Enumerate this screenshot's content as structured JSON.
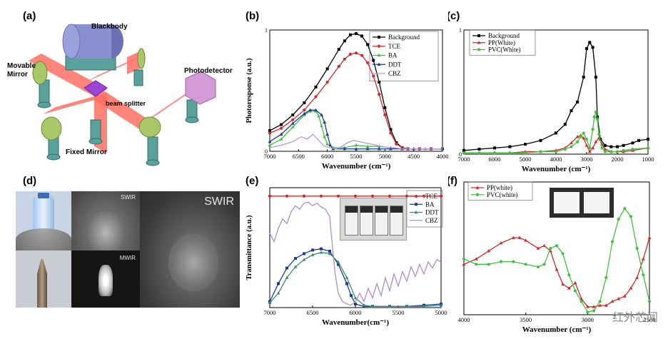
{
  "figure": {
    "panel_labels": {
      "a": "(a)",
      "b": "(b)",
      "c": "(c)",
      "d": "(d)",
      "e": "(e)",
      "f": "(f)"
    },
    "watermark": "红外芯闻"
  },
  "setup": {
    "blackbody": "Blackbody",
    "movable_mirror": "Movable Mirror",
    "beam_splitter": "beam splitter",
    "photodetector": "Photodetector",
    "fixed_mirror": "Fixed Mirror",
    "colors": {
      "beam": "#ff6f61",
      "mirror": "#a9c766",
      "post": "#5aa19b",
      "splitter": "#9b46d8",
      "detector": "#d39bd8",
      "blackbody": "#8a8fcf"
    }
  },
  "imaging": {
    "swir_small": "SWIR",
    "mwir_small": "MWIR",
    "swir_large": "SWIR"
  },
  "chart_data": [
    {
      "id": "b",
      "type": "line",
      "xlabel": "Wavenumber (cm⁻¹)",
      "ylabel": "Photoresponse (a.u.)",
      "xlim": [
        7000,
        4000
      ],
      "ylim": [
        0,
        1
      ],
      "xticks": [
        7000,
        6500,
        6000,
        5500,
        5000,
        4500,
        4000
      ],
      "yticks": [
        {
          "v": 0,
          "t": "0"
        },
        {
          "v": 1,
          "t": "1"
        }
      ],
      "series": [
        {
          "name": "Background",
          "color": "#000000",
          "marker": "square",
          "x": [
            7000,
            6800,
            6600,
            6400,
            6200,
            6000,
            5800,
            5700,
            5600,
            5500,
            5400,
            5300,
            5200,
            5100,
            5000,
            4900,
            4800,
            4700,
            4600,
            4400,
            4200,
            4000
          ],
          "y": [
            0.17,
            0.22,
            0.3,
            0.4,
            0.53,
            0.68,
            0.84,
            0.91,
            0.96,
            0.97,
            0.95,
            0.88,
            0.75,
            0.57,
            0.36,
            0.18,
            0.07,
            0.03,
            0.02,
            0.02,
            0.02,
            0.02
          ]
        },
        {
          "name": "TCE",
          "color": "#d62728",
          "marker": "circle",
          "x": [
            7000,
            6800,
            6600,
            6400,
            6200,
            6000,
            5800,
            5700,
            5600,
            5500,
            5400,
            5300,
            5200,
            5100,
            5000,
            4900,
            4800,
            4700,
            4600,
            4400,
            4200,
            4000
          ],
          "y": [
            0.15,
            0.19,
            0.26,
            0.34,
            0.45,
            0.57,
            0.7,
            0.76,
            0.8,
            0.81,
            0.79,
            0.73,
            0.62,
            0.47,
            0.3,
            0.15,
            0.06,
            0.03,
            0.02,
            0.02,
            0.02,
            0.02
          ]
        },
        {
          "name": "BA",
          "color": "#3fc23f",
          "marker": "triangle-up",
          "x": [
            7000,
            6800,
            6600,
            6400,
            6300,
            6200,
            6150,
            6100,
            6050,
            6000,
            5900,
            5700,
            5500,
            5300,
            5100,
            4900,
            4700,
            4500,
            4300,
            4000
          ],
          "y": [
            0.05,
            0.1,
            0.2,
            0.3,
            0.33,
            0.33,
            0.29,
            0.21,
            0.12,
            0.06,
            0.03,
            0.03,
            0.05,
            0.04,
            0.04,
            0.03,
            0.02,
            0.02,
            0.02,
            0.02
          ]
        },
        {
          "name": "DDT",
          "color": "#1f3a93",
          "marker": "triangle-up",
          "x": [
            7000,
            6800,
            6600,
            6400,
            6300,
            6200,
            6100,
            6050,
            6000,
            5950,
            5900,
            5700,
            5500,
            5300,
            5100,
            4900,
            4700,
            4500,
            4000
          ],
          "y": [
            0.08,
            0.14,
            0.23,
            0.31,
            0.34,
            0.34,
            0.3,
            0.24,
            0.14,
            0.05,
            0.02,
            0.02,
            0.02,
            0.02,
            0.02,
            0.02,
            0.02,
            0.02,
            0.02
          ]
        },
        {
          "name": "CBZ",
          "color": "#b79bd6",
          "marker": "none",
          "x": [
            7000,
            6800,
            6600,
            6450,
            6350,
            6250,
            6150,
            6050,
            5950,
            5850,
            5750,
            5650,
            5550,
            5450,
            5350,
            5250,
            5150,
            5050,
            4950,
            4850,
            4700,
            4500,
            4300,
            4000
          ],
          "y": [
            0.03,
            0.05,
            0.08,
            0.12,
            0.1,
            0.14,
            0.09,
            0.04,
            0.03,
            0.02,
            0.04,
            0.07,
            0.09,
            0.08,
            0.07,
            0.06,
            0.05,
            0.04,
            0.03,
            0.03,
            0.02,
            0.02,
            0.02,
            0.02
          ]
        }
      ]
    },
    {
      "id": "c",
      "type": "line",
      "xlabel": "Wavenumber (cm⁻¹)",
      "ylabel": "Photoresponse (a.u.)",
      "xlim": [
        7000,
        1000
      ],
      "ylim": [
        0,
        1
      ],
      "xticks": [
        7000,
        6000,
        5000,
        4000,
        3000,
        2000,
        1000
      ],
      "yticks": [
        {
          "v": 0,
          "t": "0"
        },
        {
          "v": 1,
          "t": "1"
        }
      ],
      "series": [
        {
          "name": "Background",
          "color": "#000000",
          "marker": "square",
          "x": [
            7000,
            6500,
            6000,
            5500,
            5000,
            4500,
            4000,
            3700,
            3500,
            3300,
            3100,
            3000,
            2900,
            2800,
            2700,
            2650,
            2550,
            2400,
            2200,
            2000,
            1800,
            1500,
            1300,
            1000
          ],
          "y": [
            0.03,
            0.04,
            0.05,
            0.06,
            0.08,
            0.11,
            0.17,
            0.24,
            0.35,
            0.42,
            0.62,
            0.85,
            0.9,
            0.86,
            0.62,
            0.3,
            0.12,
            0.07,
            0.06,
            0.06,
            0.07,
            0.09,
            0.11,
            0.12
          ]
        },
        {
          "name": "PP(White)",
          "color": "#d62728",
          "marker": "triangle-up",
          "x": [
            7000,
            6500,
            6000,
            5500,
            5000,
            4500,
            4000,
            3700,
            3500,
            3300,
            3200,
            3100,
            3000,
            2900,
            2800,
            2700,
            2600,
            2500,
            2400,
            2200,
            2000,
            1800,
            1500,
            1000
          ],
          "y": [
            0.01,
            0.01,
            0.01,
            0.01,
            0.02,
            0.02,
            0.03,
            0.05,
            0.09,
            0.14,
            0.15,
            0.13,
            0.07,
            0.02,
            0.05,
            0.1,
            0.13,
            0.08,
            0.04,
            0.02,
            0.02,
            0.02,
            0.03,
            0.05
          ]
        },
        {
          "name": "PVC(White)",
          "color": "#3fc23f",
          "marker": "circle",
          "x": [
            7000,
            6500,
            6000,
            5500,
            5000,
            4500,
            4000,
            3700,
            3500,
            3300,
            3200,
            3100,
            3000,
            2900,
            2800,
            2750,
            2700,
            2650,
            2600,
            2500,
            2400,
            2200,
            2000,
            1800,
            1500,
            1000
          ],
          "y": [
            0.01,
            0.01,
            0.01,
            0.01,
            0.01,
            0.02,
            0.02,
            0.04,
            0.06,
            0.1,
            0.14,
            0.17,
            0.12,
            0.05,
            0.2,
            0.3,
            0.34,
            0.28,
            0.16,
            0.05,
            0.02,
            0.02,
            0.02,
            0.03,
            0.04,
            0.05
          ]
        }
      ]
    },
    {
      "id": "e",
      "type": "line",
      "xlabel": "Wavenumber(cm⁻¹)",
      "ylabel": "Transmittance (a.u.)",
      "xlim": [
        7000,
        5000
      ],
      "ylim": [
        0,
        1
      ],
      "xticks": [
        7000,
        6500,
        6000,
        5500,
        5000
      ],
      "yticks": [],
      "series": [
        {
          "name": "TCE",
          "color": "#d62728",
          "marker": "circle",
          "x": [
            7000,
            6800,
            6600,
            6400,
            6200,
            6000,
            5800,
            5600,
            5400,
            5200,
            5000
          ],
          "y": [
            0.93,
            0.93,
            0.93,
            0.93,
            0.93,
            0.93,
            0.93,
            0.93,
            0.93,
            0.93,
            0.93
          ]
        },
        {
          "name": "BA",
          "color": "#1f3a93",
          "marker": "square",
          "x": [
            7000,
            6900,
            6800,
            6700,
            6600,
            6500,
            6400,
            6300,
            6200,
            6100,
            6050,
            6000,
            5900,
            5800,
            5600,
            5400,
            5200,
            5000
          ],
          "y": [
            0.05,
            0.2,
            0.33,
            0.41,
            0.45,
            0.48,
            0.49,
            0.47,
            0.36,
            0.2,
            0.1,
            0.03,
            0.01,
            0.01,
            0.01,
            0.01,
            0.02,
            0.03
          ]
        },
        {
          "name": "DDT",
          "color": "#3a8a78",
          "marker": "triangle-up",
          "x": [
            7000,
            6900,
            6800,
            6700,
            6600,
            6500,
            6400,
            6300,
            6200,
            6100,
            6000,
            5900,
            5800,
            5600,
            5400,
            5200,
            5000
          ],
          "y": [
            0.04,
            0.12,
            0.25,
            0.34,
            0.4,
            0.44,
            0.46,
            0.45,
            0.38,
            0.25,
            0.08,
            0.02,
            0.01,
            0.01,
            0.01,
            0.01,
            0.02
          ]
        },
        {
          "name": "CBZ",
          "color": "#a98fd0",
          "marker": "none",
          "x": [
            7000,
            6950,
            6900,
            6850,
            6800,
            6750,
            6700,
            6650,
            6600,
            6550,
            6500,
            6450,
            6400,
            6350,
            6300,
            6280,
            6260,
            6240,
            6200,
            6150,
            6100,
            6050,
            6000,
            5950,
            5900,
            5850,
            5800,
            5750,
            5700,
            5650,
            5600,
            5550,
            5500,
            5450,
            5400,
            5350,
            5300,
            5250,
            5200,
            5150,
            5100,
            5050,
            5000
          ],
          "y": [
            0.62,
            0.55,
            0.66,
            0.74,
            0.7,
            0.8,
            0.85,
            0.82,
            0.87,
            0.88,
            0.85,
            0.87,
            0.84,
            0.82,
            0.76,
            0.6,
            0.45,
            0.3,
            0.12,
            0.05,
            0.03,
            0.02,
            0.05,
            0.12,
            0.05,
            0.16,
            0.08,
            0.2,
            0.1,
            0.25,
            0.14,
            0.28,
            0.18,
            0.3,
            0.22,
            0.34,
            0.26,
            0.36,
            0.28,
            0.38,
            0.33,
            0.4,
            0.38
          ]
        }
      ]
    },
    {
      "id": "f",
      "type": "line",
      "xlabel": "Wavenumber (cm⁻¹)",
      "ylabel": "Transmittance",
      "xlim": [
        4000,
        2500
      ],
      "ylim": [
        0,
        1
      ],
      "xticks": [
        4000,
        3500,
        3000,
        2500
      ],
      "yticks": [],
      "series": [
        {
          "name": "PP(white)",
          "color": "#d62728",
          "marker": "triangle-up",
          "x": [
            4000,
            3900,
            3800,
            3700,
            3600,
            3550,
            3500,
            3400,
            3350,
            3300,
            3250,
            3200,
            3150,
            3100,
            3050,
            3000,
            2950,
            2900,
            2850,
            2800,
            2750,
            2700,
            2650,
            2600,
            2550,
            2500
          ],
          "y": [
            0.38,
            0.42,
            0.48,
            0.54,
            0.58,
            0.58,
            0.56,
            0.5,
            0.52,
            0.48,
            0.34,
            0.23,
            0.2,
            0.24,
            0.12,
            0.06,
            0.06,
            0.07,
            0.07,
            0.1,
            0.12,
            0.14,
            0.2,
            0.28,
            0.42,
            0.58
          ]
        },
        {
          "name": "PVC(white)",
          "color": "#3fc23f",
          "marker": "circle",
          "x": [
            4000,
            3900,
            3800,
            3700,
            3600,
            3500,
            3400,
            3350,
            3300,
            3250,
            3200,
            3150,
            3100,
            3050,
            3000,
            2950,
            2900,
            2850,
            2800,
            2750,
            2700,
            2650,
            2600,
            2550,
            2500
          ],
          "y": [
            0.42,
            0.38,
            0.38,
            0.4,
            0.4,
            0.38,
            0.36,
            0.38,
            0.5,
            0.52,
            0.46,
            0.3,
            0.18,
            0.1,
            0.02,
            0.03,
            0.1,
            0.28,
            0.55,
            0.72,
            0.8,
            0.74,
            0.5,
            0.3,
            0.1
          ]
        }
      ]
    }
  ]
}
